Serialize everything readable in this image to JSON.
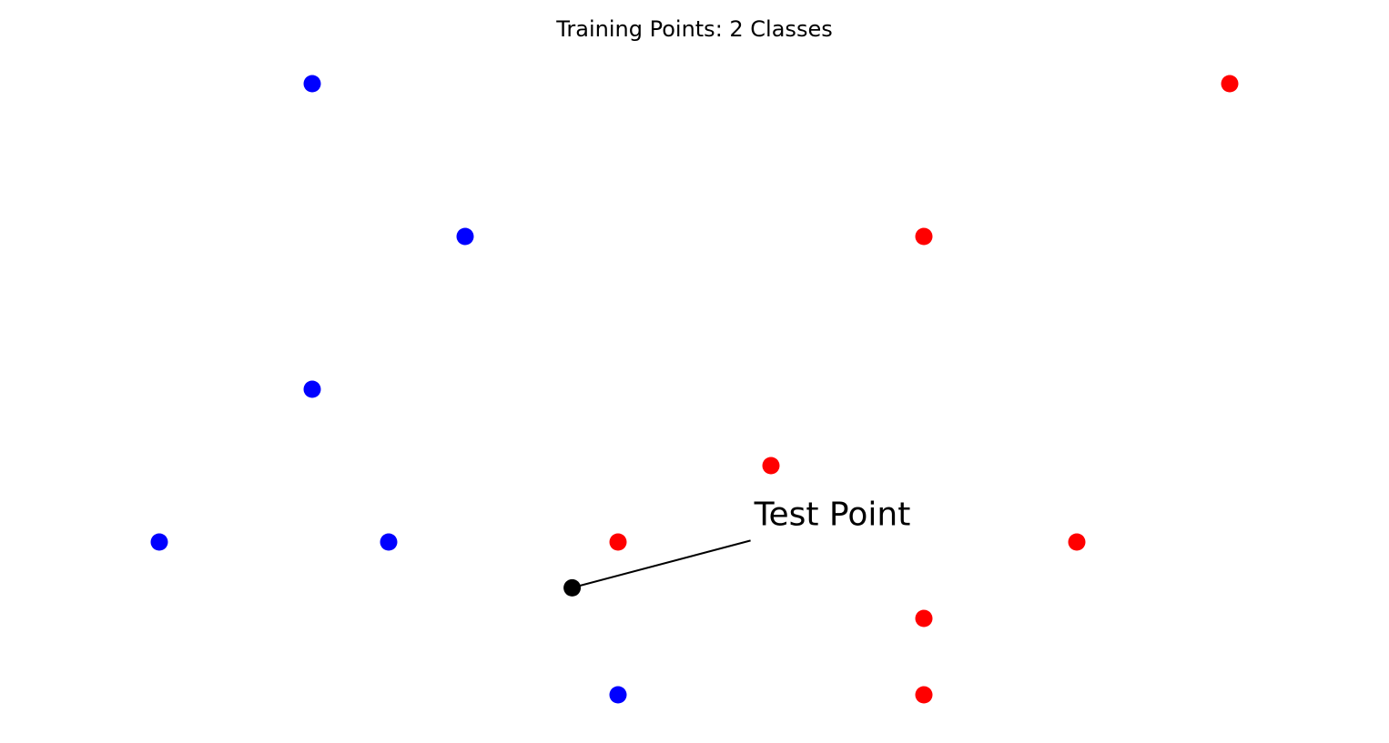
{
  "chart_data": {
    "type": "scatter",
    "title": "Training Points: 2 Classes",
    "annotation": "Test Point",
    "xlim": [
      0.65,
      8.35
    ],
    "ylim": [
      0.8,
      5.2
    ],
    "series": [
      {
        "color": "#0000ff",
        "x": [
          2,
          3,
          2,
          1,
          2.5,
          4
        ],
        "values": [
          5,
          4,
          3,
          2,
          2,
          1
        ]
      },
      {
        "color": "#ff0000",
        "x": [
          8,
          6,
          5,
          4,
          7,
          6,
          6
        ],
        "values": [
          5,
          4,
          2.5,
          2,
          2,
          1.5,
          1
        ]
      },
      {
        "color": "#000000",
        "x": [
          3.7
        ],
        "values": [
          1.7
        ]
      }
    ]
  }
}
